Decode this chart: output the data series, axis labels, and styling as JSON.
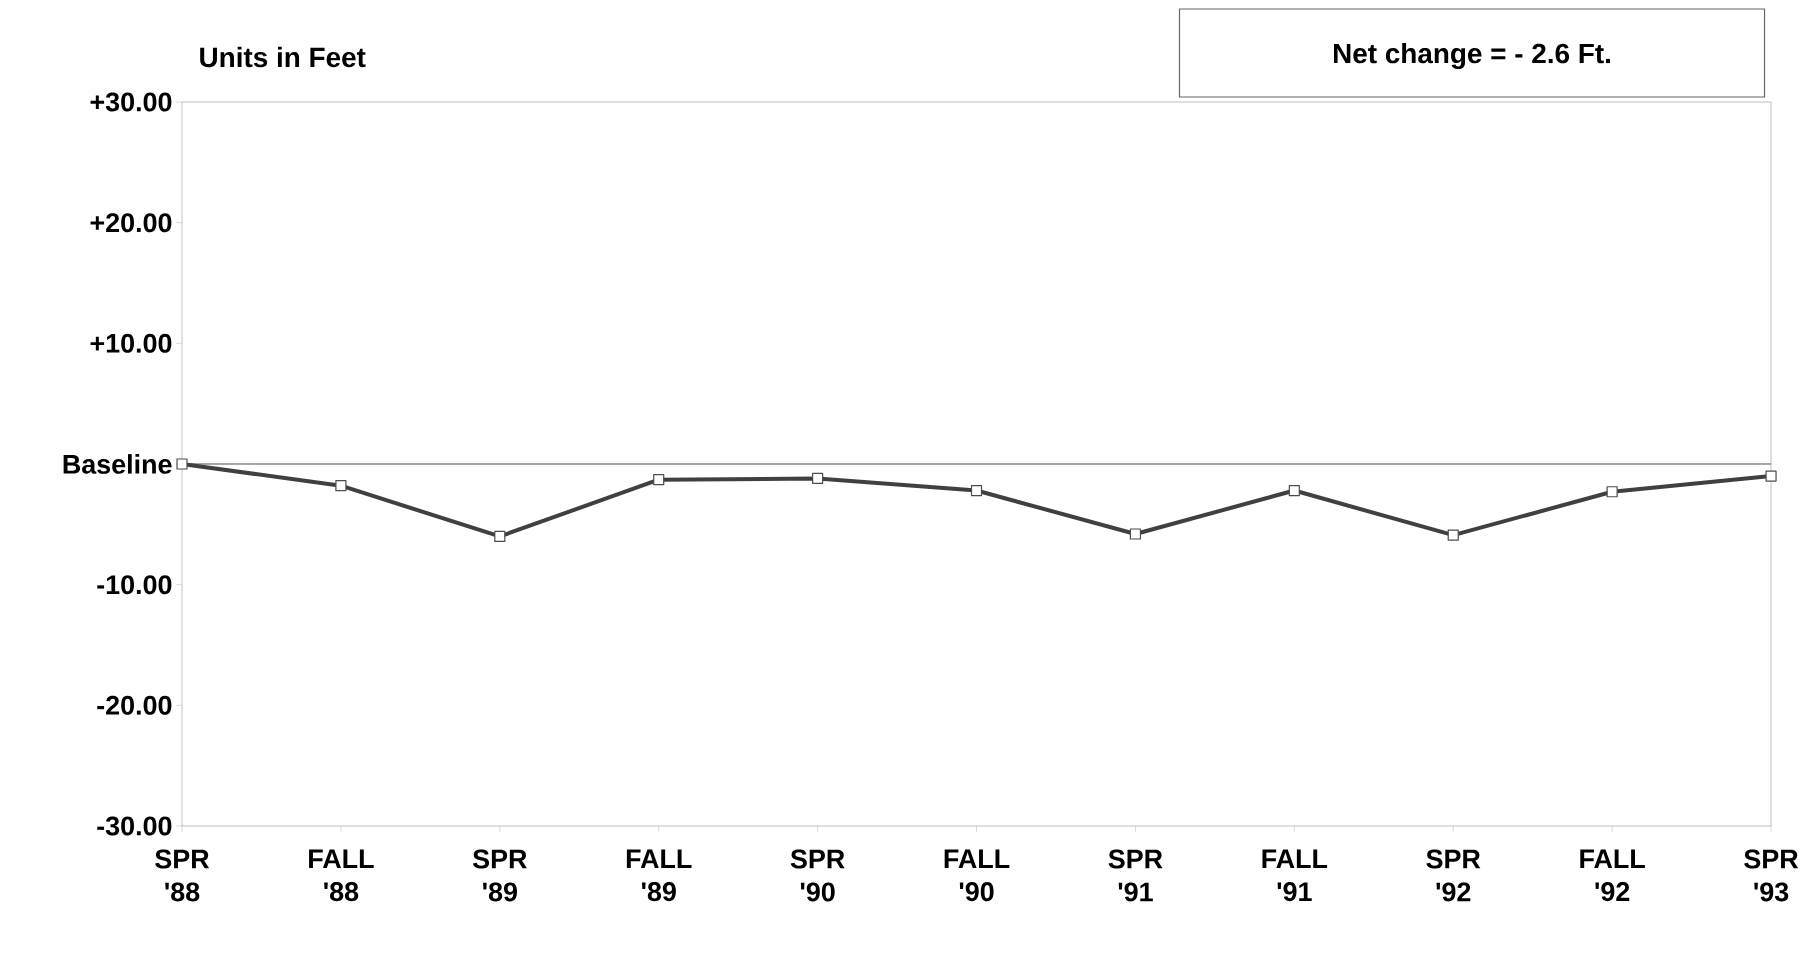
{
  "chart_data": {
    "type": "line",
    "ylabel": "Units in Feet",
    "annotations": [
      "Net change =  - 2.6 Ft."
    ],
    "categories": [
      "SPR '88",
      "FALL '88",
      "SPR '89",
      "FALL '89",
      "SPR '90",
      "FALL '90",
      "SPR '91",
      "FALL '91",
      "SPR '92",
      "FALL '92",
      "SPR '93"
    ],
    "series": [
      {
        "color": "#404040",
        "values": [
          0,
          -1.8,
          -6.0,
          -1.3,
          -1.2,
          -2.2,
          -5.8,
          -2.2,
          -5.9,
          -2.3,
          -1.0
        ]
      }
    ],
    "ylim": [
      -30,
      30
    ],
    "yticks": [
      {
        "value": 30,
        "label": "+30.00"
      },
      {
        "value": 20,
        "label": "+20.00"
      },
      {
        "value": 10,
        "label": "+10.00"
      },
      {
        "value": 0,
        "label": "Baseline"
      },
      {
        "value": -10,
        "label": "-10.00"
      },
      {
        "value": -20,
        "label": "-20.00"
      },
      {
        "value": -30,
        "label": "-30.00"
      }
    ],
    "ref_lines": [
      {
        "axis": "y",
        "value": 0,
        "color": "#505050"
      }
    ],
    "marker": "square",
    "line_style": "solid"
  }
}
